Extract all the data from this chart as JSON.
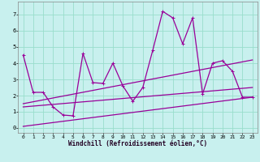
{
  "xlabel": "Windchill (Refroidissement éolien,°C)",
  "bg_color": "#c8f0ee",
  "line_color": "#990099",
  "grid_color": "#99ddcc",
  "x_hours": [
    0,
    1,
    2,
    3,
    4,
    5,
    6,
    7,
    8,
    9,
    10,
    11,
    12,
    13,
    14,
    15,
    16,
    17,
    18,
    19,
    20,
    21,
    22,
    23
  ],
  "windchill": [
    4.5,
    2.2,
    2.2,
    1.3,
    0.8,
    0.75,
    4.6,
    2.8,
    2.75,
    4.0,
    2.6,
    1.65,
    2.5,
    4.8,
    7.2,
    6.8,
    5.2,
    6.8,
    2.1,
    4.0,
    4.15,
    3.5,
    1.9,
    1.9
  ],
  "trend1_x": [
    0,
    23
  ],
  "trend1_y": [
    1.3,
    2.5
  ],
  "trend2_x": [
    0,
    23
  ],
  "trend2_y": [
    1.5,
    4.2
  ],
  "trend3_x": [
    0,
    23
  ],
  "trend3_y": [
    0.1,
    1.9
  ],
  "xlim": [
    -0.5,
    23.5
  ],
  "ylim": [
    -0.3,
    7.8
  ],
  "xticks": [
    0,
    1,
    2,
    3,
    4,
    5,
    6,
    7,
    8,
    9,
    10,
    11,
    12,
    13,
    14,
    15,
    16,
    17,
    18,
    19,
    20,
    21,
    22,
    23
  ],
  "yticks": [
    0,
    1,
    2,
    3,
    4,
    5,
    6,
    7
  ]
}
